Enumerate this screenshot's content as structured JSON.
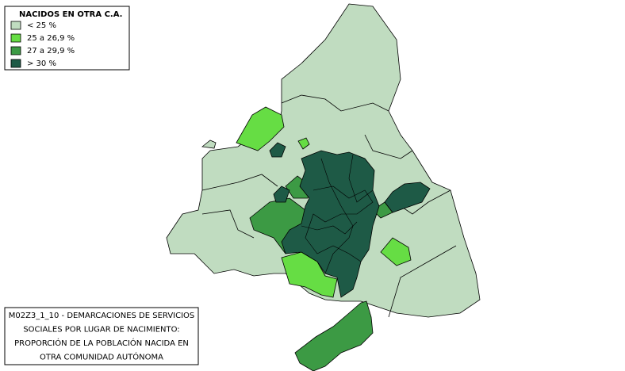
{
  "legend": {
    "title": "NACIDOS EN OTRA C.A.",
    "items": [
      {
        "label": "< 25 %",
        "color": "#c0dcc0"
      },
      {
        "label": "25 a 26,9 %",
        "color": "#66dd44"
      },
      {
        "label": "27 a 29,9 %",
        "color": "#3c9a44"
      },
      {
        "label": "> 30 %",
        "color": "#1e5a46"
      }
    ]
  },
  "caption": {
    "lines": [
      "M02Z3_1_10 - DEMARCACIONES DE SERVICIOS",
      "SOCIALES POR LUGAR DE NACIMIENTO:",
      "PROPORCIÓN DE LA POBLACIÓN NACIDA EN",
      "OTRA COMUNIDAD AUTÓNOMA"
    ]
  }
}
